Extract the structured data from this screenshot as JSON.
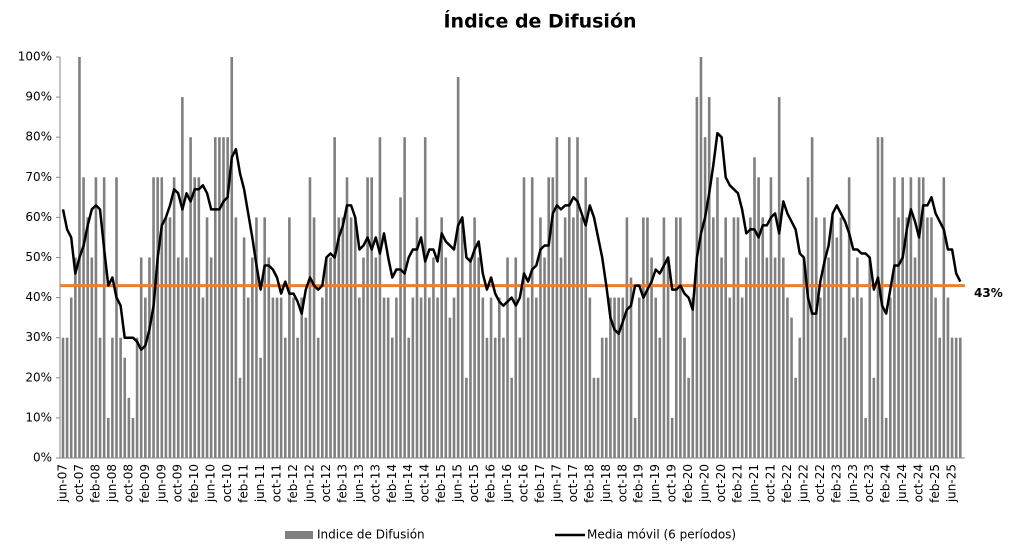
{
  "chart_data": {
    "type": "bar",
    "title": "Índice de Difusión",
    "categories": [
      "jun-07",
      null,
      null,
      null,
      "oct-07",
      null,
      null,
      null,
      "feb-08",
      null,
      null,
      null,
      "jun-08",
      null,
      null,
      null,
      "oct-08",
      null,
      null,
      null,
      "feb-09",
      null,
      null,
      null,
      "jun-09",
      null,
      null,
      null,
      "oct-09",
      null,
      null,
      null,
      "feb-10",
      null,
      null,
      null,
      "jun-10",
      null,
      null,
      null,
      "oct-10",
      null,
      null,
      null,
      "feb-11",
      null,
      null,
      null,
      "jun-11",
      null,
      null,
      null,
      "oct-11",
      null,
      null,
      null,
      "feb-12",
      null,
      null,
      null,
      "jun-12",
      null,
      null,
      null,
      "oct-12",
      null,
      null,
      null,
      "feb-13",
      null,
      null,
      null,
      "jun-13",
      null,
      null,
      null,
      "oct-13",
      null,
      null,
      null,
      "feb-14",
      null,
      null,
      null,
      "jun-14",
      null,
      null,
      null,
      "oct-14",
      null,
      null,
      null,
      "feb-15",
      null,
      null,
      null,
      "jun-15",
      null,
      null,
      null,
      "oct-15",
      null,
      null,
      null,
      "feb-16",
      null,
      null,
      null,
      "jun-16",
      null,
      null,
      null,
      "oct-16",
      null,
      null,
      null,
      "feb-17",
      null,
      null,
      null,
      "jun-17",
      null,
      null,
      null,
      "oct-17",
      null,
      null,
      null,
      "feb-18",
      null,
      null,
      null,
      "jun-18",
      null,
      null,
      null,
      "oct-18",
      null,
      null,
      null,
      "feb-19",
      null,
      null,
      null,
      "jun-19",
      null,
      null,
      null,
      "oct-19",
      null,
      null,
      null,
      "feb-20",
      null,
      null,
      null,
      "jun-20",
      null,
      null,
      null,
      "oct-20",
      null,
      null,
      null,
      "feb-21",
      null,
      null,
      null,
      "jun-21",
      null,
      null,
      null,
      "oct-21",
      null,
      null,
      null,
      "feb-22",
      null,
      null,
      null,
      "jun-22",
      null,
      null,
      null,
      "oct-22",
      null,
      null,
      null,
      "feb-23",
      null,
      null,
      null,
      "jun-23",
      null,
      null,
      null,
      "oct-23",
      null,
      null,
      null,
      "feb-24",
      null,
      null,
      null,
      "jun-24",
      null,
      null,
      null,
      "oct-24",
      null,
      null,
      null,
      "feb-25",
      null,
      null,
      null,
      "jun-25",
      null,
      null
    ],
    "series": [
      {
        "name": "Indice de Difusión",
        "type": "bar",
        "color": "#808080",
        "values": [
          30,
          30,
          40,
          50,
          100,
          70,
          60,
          50,
          70,
          30,
          70,
          10,
          30,
          70,
          30,
          25,
          15,
          10,
          30,
          50,
          40,
          50,
          70,
          70,
          70,
          60,
          60,
          70,
          50,
          90,
          50,
          80,
          70,
          70,
          40,
          60,
          50,
          80,
          80,
          80,
          80,
          100,
          60,
          20,
          55,
          40,
          50,
          60,
          25,
          60,
          50,
          40,
          40,
          40,
          30,
          60,
          40,
          30,
          40,
          35,
          70,
          60,
          30,
          40,
          50,
          50,
          80,
          60,
          60,
          70,
          60,
          60,
          40,
          50,
          70,
          70,
          50,
          80,
          40,
          40,
          30,
          40,
          65,
          80,
          30,
          40,
          60,
          40,
          80,
          40,
          50,
          40,
          60,
          50,
          35,
          40,
          95,
          60,
          20,
          50,
          60,
          50,
          40,
          30,
          40,
          30,
          40,
          30,
          50,
          20,
          50,
          30,
          70,
          40,
          70,
          40,
          60,
          50,
          70,
          70,
          80,
          50,
          60,
          80,
          60,
          80,
          60,
          70,
          40,
          20,
          20,
          30,
          30,
          40,
          40,
          40,
          40,
          60,
          45,
          10,
          40,
          60,
          60,
          50,
          40,
          30,
          60,
          50,
          10,
          60,
          60,
          30,
          20,
          40,
          90,
          100,
          80,
          90,
          60,
          70,
          50,
          60,
          40,
          60,
          60,
          40,
          50,
          60,
          75,
          70,
          60,
          50,
          70,
          50,
          90,
          50,
          40,
          35,
          20,
          30,
          50,
          70,
          80,
          60,
          40,
          60,
          50,
          60,
          55,
          60,
          30,
          70,
          40,
          50,
          40,
          10,
          50,
          20,
          80,
          80,
          10,
          40,
          70,
          60,
          70,
          60,
          70,
          50,
          70,
          70,
          60,
          60,
          40,
          30,
          70,
          40,
          30,
          30,
          30
        ]
      },
      {
        "name": "Media móvil (6 períodos)",
        "type": "line",
        "color": "#000000",
        "values": [
          62,
          57,
          55,
          46,
          50,
          53,
          58,
          62,
          63,
          62,
          52,
          43,
          45,
          40,
          38,
          30,
          30,
          30,
          29,
          27,
          28,
          32,
          38,
          50,
          58,
          60,
          63,
          67,
          66,
          62,
          66,
          64,
          67,
          67,
          68,
          66,
          62,
          62,
          62,
          64,
          65,
          75,
          77,
          71,
          67,
          61,
          55,
          48,
          42,
          48,
          48,
          47,
          45,
          41,
          44,
          41,
          41,
          39,
          36,
          42,
          45,
          43,
          42,
          43,
          50,
          51,
          50,
          55,
          58,
          63,
          63,
          60,
          52,
          53,
          55,
          52,
          55,
          51,
          56,
          50,
          45,
          47,
          47,
          46,
          50,
          52,
          52,
          55,
          49,
          52,
          52,
          49,
          56,
          54,
          53,
          52,
          58,
          60,
          50,
          49,
          52,
          54,
          46,
          42,
          45,
          41,
          39,
          38,
          39,
          40,
          38,
          40,
          46,
          44,
          47,
          48,
          52,
          53,
          53,
          61,
          63,
          62,
          63,
          63,
          65,
          64,
          61,
          58,
          63,
          60,
          55,
          50,
          43,
          35,
          32,
          31,
          34,
          37,
          38,
          43,
          43,
          40,
          42,
          44,
          47,
          46,
          48,
          50,
          42,
          42,
          43,
          41,
          40,
          37,
          50,
          56,
          60,
          66,
          73,
          81,
          80,
          70,
          68,
          67,
          66,
          62,
          56,
          57,
          57,
          55,
          58,
          58,
          60,
          61,
          56,
          64,
          61,
          59,
          57,
          51,
          50,
          40,
          36,
          36,
          44,
          49,
          53,
          61,
          63,
          61,
          59,
          56,
          52,
          52,
          51,
          51,
          50,
          42,
          45,
          38,
          36,
          42,
          48,
          48,
          50,
          57,
          62,
          59,
          55,
          63,
          63,
          65,
          61,
          59,
          57,
          52,
          52,
          46,
          44
        ]
      }
    ],
    "ylim": [
      0,
      100
    ],
    "yticks": [
      {
        "value": 0,
        "label": "0%"
      },
      {
        "value": 10,
        "label": "10%"
      },
      {
        "value": 20,
        "label": "20%"
      },
      {
        "value": 30,
        "label": "30%"
      },
      {
        "value": 40,
        "label": "40%"
      },
      {
        "value": 50,
        "label": "50%"
      },
      {
        "value": 60,
        "label": "60%"
      },
      {
        "value": 70,
        "label": "70%"
      },
      {
        "value": 80,
        "label": "80%"
      },
      {
        "value": 90,
        "label": "90%"
      },
      {
        "value": 100,
        "label": "100%"
      }
    ],
    "reference_line": {
      "value": 43,
      "label": "43%",
      "color": "#ed7d31"
    },
    "grid": false,
    "legend": "bottom"
  }
}
